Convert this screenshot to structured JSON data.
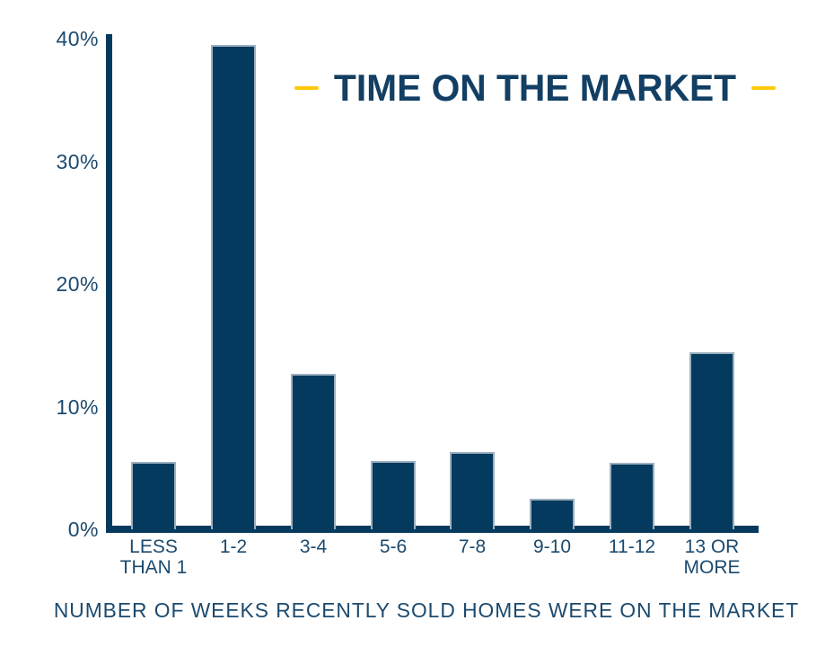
{
  "title": {
    "text": "TIME ON THE MARKET"
  },
  "caption": "NUMBER OF WEEKS RECENTLY SOLD HOMES WERE ON THE MARKET",
  "colors": {
    "bar_fill": "#043a5e",
    "bar_edge": "#9cb0c1",
    "axis": "#043a5e",
    "title_text": "#123f63",
    "label_text": "#1c4a6e",
    "accent_yellow": "#ffc907",
    "background": "#ffffff"
  },
  "chart_data": {
    "type": "bar",
    "title": "TIME ON THE MARKET",
    "categories": [
      "LESS\nTHAN 1",
      "1-2",
      "3-4",
      "5-6",
      "7-8",
      "9-10",
      "11-12",
      "13 OR\nMORE"
    ],
    "values": [
      5.5,
      39.5,
      12.7,
      5.6,
      6.3,
      2.5,
      5.4,
      14.4
    ],
    "unit": "%",
    "xlabel": "NUMBER OF WEEKS RECENTLY SOLD HOMES WERE ON THE MARKET",
    "ylabel": "",
    "ylim": [
      0,
      40
    ],
    "yticks": [
      0,
      10,
      20,
      30,
      40
    ],
    "ytick_labels": [
      "0%",
      "10%",
      "20%",
      "30%",
      "40%"
    ],
    "grid": false,
    "legend": false,
    "bar_color": "#043a5e"
  }
}
